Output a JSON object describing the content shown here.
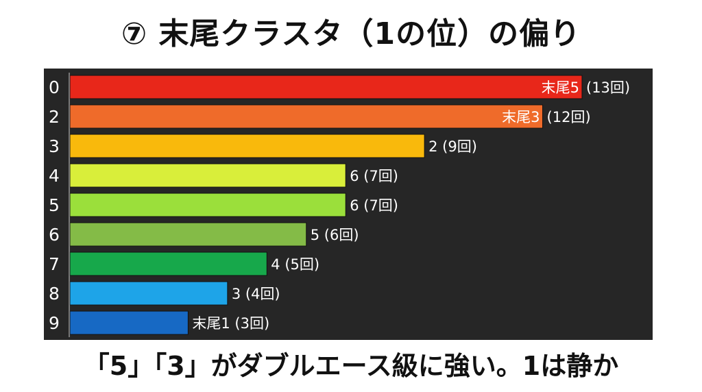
{
  "header": {
    "title": "⑦ 末尾クラスタ（1の位）の偏り"
  },
  "footer": {
    "caption": "「5」「3」がダブルエース級に強い。1は静か"
  },
  "chart_data": {
    "type": "bar",
    "orientation": "horizontal",
    "title": "⑦ 末尾クラスタ（1の位）の偏り",
    "xlabel": "",
    "ylabel": "",
    "grid": false,
    "xlim": [
      0,
      13
    ],
    "categories": [
      "0",
      "2",
      "3",
      "4",
      "5",
      "6",
      "7",
      "8",
      "9"
    ],
    "values": [
      13,
      12,
      9,
      7,
      7,
      6,
      5,
      4,
      3
    ],
    "inside_labels": [
      "末尾5",
      "末尾3",
      "",
      "",
      "",
      "",
      "",
      "",
      ""
    ],
    "outside_labels": [
      "(13回)",
      "(12回)",
      "2 (9回)",
      "6 (7回)",
      "6 (7回)",
      "5 (6回)",
      "4 (5回)",
      "3 (4回)",
      "末尾1 (3回)"
    ],
    "colors": [
      "#e8271a",
      "#ef6b2a",
      "#f9b90c",
      "#d9ee3a",
      "#9bdf3b",
      "#84bb47",
      "#17a84b",
      "#1ea4e8",
      "#1769c4"
    ]
  }
}
